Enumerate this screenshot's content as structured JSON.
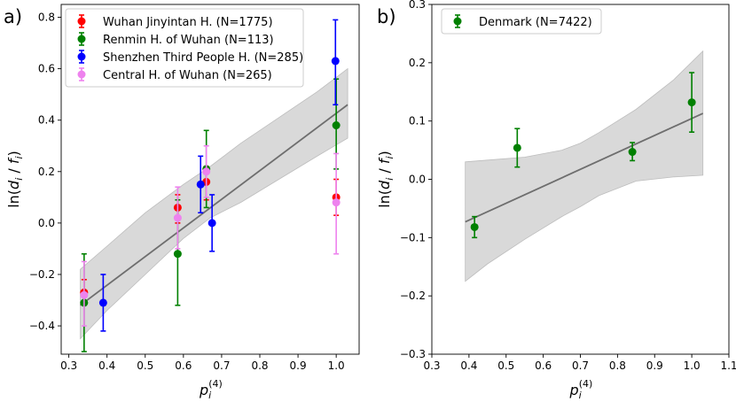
{
  "chart_data": [
    {
      "type": "scatter",
      "panel_label": "a)",
      "xlabel": "p_i^(4)",
      "ylabel": "ln(d_i / f_i)",
      "xlim": [
        0.28,
        1.06
      ],
      "ylim": [
        -0.51,
        0.85
      ],
      "xticks": [
        0.3,
        0.4,
        0.5,
        0.6,
        0.7,
        0.8,
        0.9,
        1.0
      ],
      "xtick_labels": [
        "0.3",
        "0.4",
        "0.5",
        "0.6",
        "0.7",
        "0.8",
        "0.9",
        "1.0"
      ],
      "yticks": [
        -0.4,
        -0.2,
        0.0,
        0.2,
        0.4,
        0.6,
        0.8
      ],
      "ytick_labels": [
        "−0.4",
        "−0.2",
        "0.0",
        "0.2",
        "0.4",
        "0.6",
        "0.8"
      ],
      "legend_position": "top-left",
      "fit": {
        "x": [
          0.33,
          1.03
        ],
        "y": [
          -0.32,
          0.46
        ]
      },
      "band": {
        "x": [
          0.33,
          0.4,
          0.5,
          0.6,
          0.67,
          0.75,
          0.85,
          0.95,
          1.03
        ],
        "upper": [
          -0.18,
          -0.09,
          0.04,
          0.15,
          0.22,
          0.31,
          0.41,
          0.51,
          0.6
        ],
        "lower": [
          -0.45,
          -0.34,
          -0.2,
          -0.06,
          0.02,
          0.08,
          0.17,
          0.26,
          0.33
        ]
      },
      "series": [
        {
          "name": "Wuhan Jinyintan H.    (N=1775)",
          "color": "#ff0000",
          "points": [
            {
              "x": 0.34,
              "y": -0.27,
              "lo": -0.31,
              "hi": -0.22
            },
            {
              "x": 0.585,
              "y": 0.06,
              "lo": 0.0,
              "hi": 0.11
            },
            {
              "x": 0.66,
              "y": 0.16,
              "lo": 0.09,
              "hi": 0.22
            },
            {
              "x": 1.0,
              "y": 0.1,
              "lo": 0.03,
              "hi": 0.17
            }
          ]
        },
        {
          "name": "Renmin H. of Wuhan (N=113)",
          "color": "#008000",
          "points": [
            {
              "x": 0.34,
              "y": -0.31,
              "lo": -0.5,
              "hi": -0.12
            },
            {
              "x": 0.585,
              "y": -0.12,
              "lo": -0.32,
              "hi": 0.09
            },
            {
              "x": 0.66,
              "y": 0.21,
              "lo": 0.06,
              "hi": 0.36
            },
            {
              "x": 1.0,
              "y": 0.38,
              "lo": 0.21,
              "hi": 0.56
            }
          ]
        },
        {
          "name": "Shenzhen Third People H. (N=285)",
          "color": "#0000ff",
          "points": [
            {
              "x": 0.39,
              "y": -0.31,
              "lo": -0.42,
              "hi": -0.2
            },
            {
              "x": 0.645,
              "y": 0.15,
              "lo": 0.04,
              "hi": 0.26
            },
            {
              "x": 0.675,
              "y": 0.0,
              "lo": -0.11,
              "hi": 0.11
            },
            {
              "x": 0.998,
              "y": 0.63,
              "lo": 0.46,
              "hi": 0.79
            }
          ]
        },
        {
          "name": "Central H. of Wuhan (N=265)",
          "color": "#ee82ee",
          "points": [
            {
              "x": 0.34,
              "y": -0.28,
              "lo": -0.4,
              "hi": -0.15
            },
            {
              "x": 0.585,
              "y": 0.02,
              "lo": -0.1,
              "hi": 0.14
            },
            {
              "x": 0.66,
              "y": 0.2,
              "lo": 0.1,
              "hi": 0.3
            },
            {
              "x": 1.0,
              "y": 0.08,
              "lo": -0.12,
              "hi": 0.27
            }
          ]
        }
      ]
    },
    {
      "type": "scatter",
      "panel_label": "b)",
      "xlabel": "p_i^(4)",
      "ylabel": "ln(d_i / f_i)",
      "xlim": [
        0.3,
        1.1
      ],
      "ylim": [
        -0.3,
        0.3
      ],
      "xticks": [
        0.3,
        0.4,
        0.5,
        0.6,
        0.7,
        0.8,
        0.9,
        1.0,
        1.1
      ],
      "xtick_labels": [
        "0.3",
        "0.4",
        "0.5",
        "0.6",
        "0.7",
        "0.8",
        "0.9",
        "1.0",
        "1.1"
      ],
      "yticks": [
        -0.3,
        -0.2,
        -0.1,
        0.0,
        0.1,
        0.2,
        0.3
      ],
      "ytick_labels": [
        "−0.3",
        "−0.2",
        "−0.1",
        "0.0",
        "0.1",
        "0.2",
        "0.3"
      ],
      "legend_position": "top-left",
      "fit": {
        "x": [
          0.39,
          1.03
        ],
        "y": [
          -0.073,
          0.113
        ]
      },
      "band": {
        "x": [
          0.39,
          0.45,
          0.55,
          0.65,
          0.7,
          0.75,
          0.85,
          0.95,
          1.03
        ],
        "upper": [
          0.03,
          0.033,
          0.038,
          0.05,
          0.062,
          0.08,
          0.12,
          0.17,
          0.22
        ],
        "lower": [
          -0.175,
          -0.145,
          -0.103,
          -0.064,
          -0.047,
          -0.028,
          -0.003,
          0.004,
          0.007
        ]
      },
      "series": [
        {
          "name": "Denmark (N=7422)",
          "color": "#008000",
          "points": [
            {
              "x": 0.415,
              "y": -0.082,
              "lo": -0.1,
              "hi": -0.064
            },
            {
              "x": 0.53,
              "y": 0.054,
              "lo": 0.021,
              "hi": 0.087
            },
            {
              "x": 0.84,
              "y": 0.047,
              "lo": 0.032,
              "hi": 0.063
            },
            {
              "x": 1.0,
              "y": 0.132,
              "lo": 0.081,
              "hi": 0.183
            }
          ]
        }
      ]
    }
  ]
}
